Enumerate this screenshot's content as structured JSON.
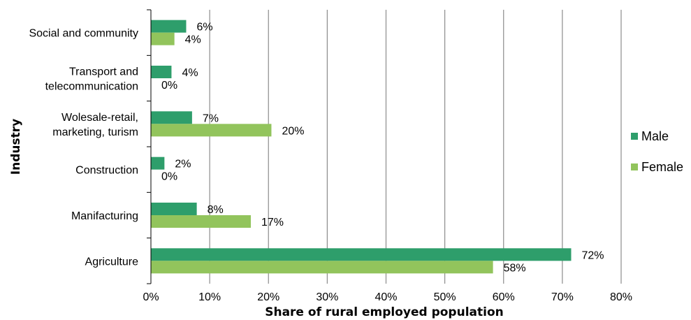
{
  "chart_data": {
    "type": "bar",
    "orientation": "horizontal",
    "title": "",
    "xlabel": "Share of rural employed population",
    "ylabel": "Industry",
    "xlim": [
      0,
      80
    ],
    "x_ticks": [
      "0%",
      "10%",
      "20%",
      "30%",
      "40%",
      "50%",
      "60%",
      "70%",
      "80%"
    ],
    "grid": "vertical",
    "legend_position": "right",
    "categories": [
      [
        "Social and community"
      ],
      [
        "Transport and",
        "telecommunication"
      ],
      [
        "Wolesale-retail,",
        "marketing, turism"
      ],
      [
        "Construction"
      ],
      [
        "Manifacturing"
      ],
      [
        "Agriculture"
      ]
    ],
    "series": [
      {
        "name": "Male",
        "color": "#2e9e6b",
        "values": [
          6,
          3.5,
          7,
          2.3,
          7.8,
          71.5
        ],
        "labels": [
          "6%",
          "4%",
          "7%",
          "2%",
          "8%",
          "72%"
        ]
      },
      {
        "name": "Female",
        "color": "#92c45c",
        "values": [
          4,
          0,
          20.5,
          0,
          17,
          58.2
        ],
        "labels": [
          "4%",
          "0%",
          "20%",
          "0%",
          "17%",
          "58%"
        ]
      }
    ]
  }
}
